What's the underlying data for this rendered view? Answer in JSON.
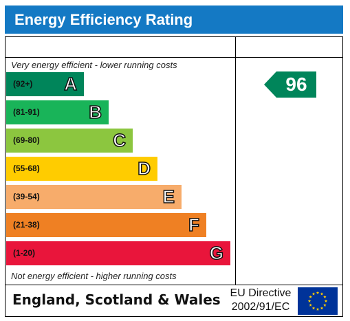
{
  "title": "Energy Efficiency Rating",
  "top_caption": "Very energy efficient - lower running costs",
  "bottom_caption": "Not energy efficient - higher running costs",
  "region": "England, Scotland & Wales",
  "eu_directive": {
    "line1": "EU Directive",
    "line2": "2002/91/EC"
  },
  "colors": {
    "header": "#1479c4",
    "pointer": "#00855a",
    "flag": "#003399",
    "stars": "#ffcc00"
  },
  "chart_data": {
    "type": "bar",
    "orientation": "horizontal",
    "title": "Energy Efficiency Rating",
    "categories": [
      "A",
      "B",
      "C",
      "D",
      "E",
      "F",
      "G"
    ],
    "ranges": [
      "(92+)",
      "(81-91)",
      "(69-80)",
      "(55-68)",
      "(39-54)",
      "(21-38)",
      "(1-20)"
    ],
    "colors": [
      "#00855a",
      "#19b459",
      "#8cc63f",
      "#ffcc00",
      "#f7ac6b",
      "#ef8023",
      "#e9153b"
    ],
    "current_rating": 96,
    "current_band": "A"
  }
}
